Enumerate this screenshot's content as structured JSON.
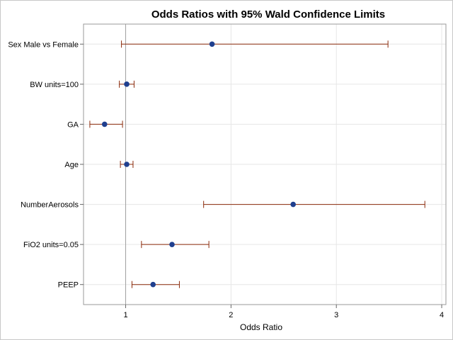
{
  "chart_data": {
    "type": "forest",
    "title": "Odds Ratios with 95% Wald Confidence Limits",
    "xlabel": "Odds Ratio",
    "xlim": [
      0.6,
      4.04
    ],
    "xticks": [
      1,
      2,
      3,
      4
    ],
    "tick_labels": [
      "1",
      "2",
      "3",
      "4"
    ],
    "reference_line": 1,
    "grid": true,
    "colors": {
      "point": "#1f3f8f",
      "ci": "#8b2a0a",
      "grid": "#e6e6e6",
      "reference": "#a0a0a0"
    },
    "rows": [
      {
        "label": "Sex Male vs Female",
        "estimate": 1.82,
        "lower": 0.96,
        "upper": 3.49
      },
      {
        "label": "BW units=100",
        "estimate": 1.01,
        "lower": 0.94,
        "upper": 1.08
      },
      {
        "label": "GA",
        "estimate": 0.8,
        "lower": 0.66,
        "upper": 0.97
      },
      {
        "label": "Age",
        "estimate": 1.01,
        "lower": 0.95,
        "upper": 1.07
      },
      {
        "label": "NumberAerosols",
        "estimate": 2.59,
        "lower": 1.74,
        "upper": 3.84
      },
      {
        "label": "FiO2 units=0.05",
        "estimate": 1.44,
        "lower": 1.15,
        "upper": 1.79
      },
      {
        "label": "PEEP",
        "estimate": 1.26,
        "lower": 1.06,
        "upper": 1.51
      }
    ]
  }
}
